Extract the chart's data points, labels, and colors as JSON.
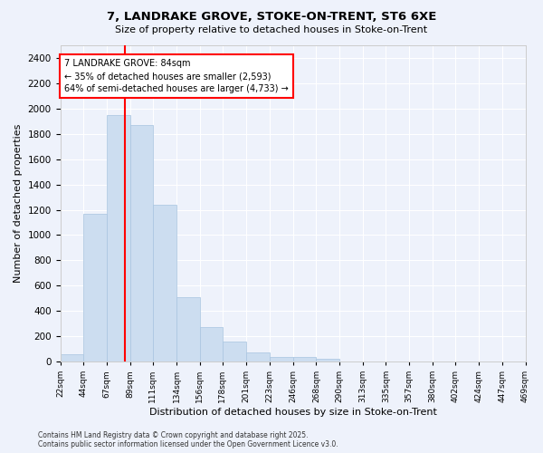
{
  "title_line1": "7, LANDRAKE GROVE, STOKE-ON-TRENT, ST6 6XE",
  "title_line2": "Size of property relative to detached houses in Stoke-on-Trent",
  "xlabel": "Distribution of detached houses by size in Stoke-on-Trent",
  "ylabel": "Number of detached properties",
  "bin_labels": [
    "22sqm",
    "44sqm",
    "67sqm",
    "89sqm",
    "111sqm",
    "134sqm",
    "156sqm",
    "178sqm",
    "201sqm",
    "223sqm",
    "246sqm",
    "268sqm",
    "290sqm",
    "313sqm",
    "335sqm",
    "357sqm",
    "380sqm",
    "402sqm",
    "424sqm",
    "447sqm",
    "469sqm"
  ],
  "bin_left_edges": [
    22,
    44,
    67,
    89,
    111,
    134,
    156,
    178,
    201,
    223,
    246,
    268,
    290,
    313,
    335,
    357,
    380,
    402,
    424,
    447
  ],
  "bin_right_edges": [
    44,
    67,
    89,
    111,
    134,
    156,
    178,
    201,
    223,
    246,
    268,
    290,
    313,
    335,
    357,
    380,
    402,
    424,
    447,
    469
  ],
  "bar_heights": [
    55,
    1170,
    1950,
    1870,
    1240,
    510,
    270,
    155,
    75,
    35,
    35,
    25,
    0,
    0,
    0,
    0,
    0,
    0,
    0,
    0
  ],
  "bar_color": "#ccddf0",
  "bar_edge_color": "#a8c4e0",
  "property_line_x": 84,
  "annotation_text": "7 LANDRAKE GROVE: 84sqm\n← 35% of detached houses are smaller (2,593)\n64% of semi-detached houses are larger (4,733) →",
  "ylim": [
    0,
    2500
  ],
  "yticks": [
    0,
    200,
    400,
    600,
    800,
    1000,
    1200,
    1400,
    1600,
    1800,
    2000,
    2200,
    2400
  ],
  "footer1": "Contains HM Land Registry data © Crown copyright and database right 2025.",
  "footer2": "Contains public sector information licensed under the Open Government Licence v3.0.",
  "bg_color": "#eef2fb"
}
